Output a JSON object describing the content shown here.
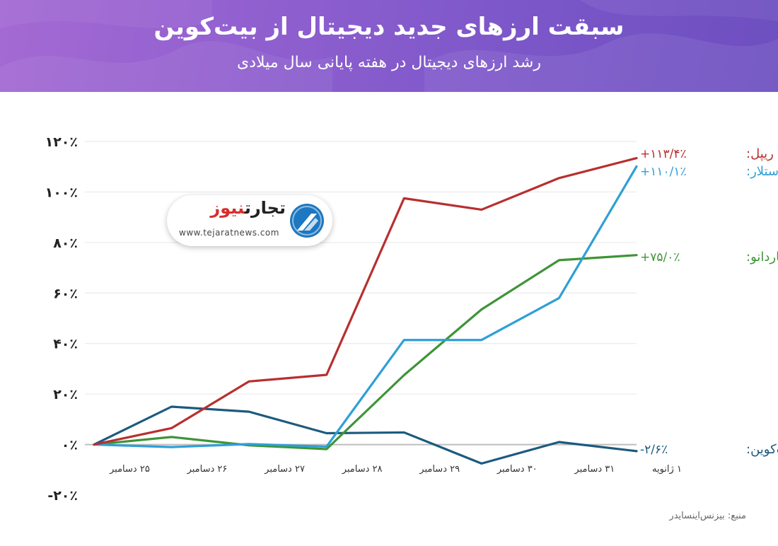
{
  "header": {
    "title": "سبقت ارزهای جدید دیجیتال از بیت‌کوین",
    "subtitle": "رشد ارزهای دیجیتال در هفته پایانی سال میلادی"
  },
  "source": "منبع: بیزنس‌اینسایدر",
  "logo": {
    "name_part1": "تجارت",
    "name_part2": "نیوز",
    "url": "www.tejaratnews.com",
    "accent_color": "#d92d2d",
    "mark_color": "#1d78c1"
  },
  "chart_data": {
    "type": "line",
    "categories": [
      "۲۵ دسامبر",
      "۲۶ دسامبر",
      "۲۷ دسامبر",
      "۲۸ دسامبر",
      "۲۹ دسامبر",
      "۳۰ دسامبر",
      "۳۱ دسامبر",
      "۱ ژانویه"
    ],
    "y_tick_labels": [
      "۱۲۰٪",
      "۱۰۰٪",
      "۸۰٪",
      "۶۰٪",
      "۴۰٪",
      "۲۰٪",
      "۰٪",
      "-۲۰٪"
    ],
    "y_tick_values": [
      120,
      100,
      80,
      60,
      40,
      20,
      0,
      -20
    ],
    "ylim": [
      -20,
      120
    ],
    "grid": true,
    "series": [
      {
        "name": "ریپل:",
        "end_label": "+۱۱۳/۴٪",
        "color": "#b82f2f",
        "values": [
          0,
          6.5,
          25,
          27.6,
          97.5,
          93,
          105.5,
          113.4
        ]
      },
      {
        "name": "استلار:",
        "end_label": "+۱۱۰/۱٪",
        "color": "#2f9fd6",
        "values": [
          0,
          -1,
          0.2,
          -0.8,
          41.4,
          41.4,
          58,
          110.1
        ]
      },
      {
        "name": "کاردانو:",
        "end_label": "+۷۵/۰٪",
        "color": "#3f9437",
        "values": [
          0,
          3,
          -0.3,
          -1.8,
          27.5,
          53.5,
          73,
          75
        ]
      },
      {
        "name": "بیت‌کوین:",
        "end_label": "-۲/۶٪",
        "color": "#1c5a7e",
        "values": [
          0,
          15,
          13,
          4.5,
          4.8,
          -7.5,
          1,
          -2.6
        ]
      }
    ]
  }
}
